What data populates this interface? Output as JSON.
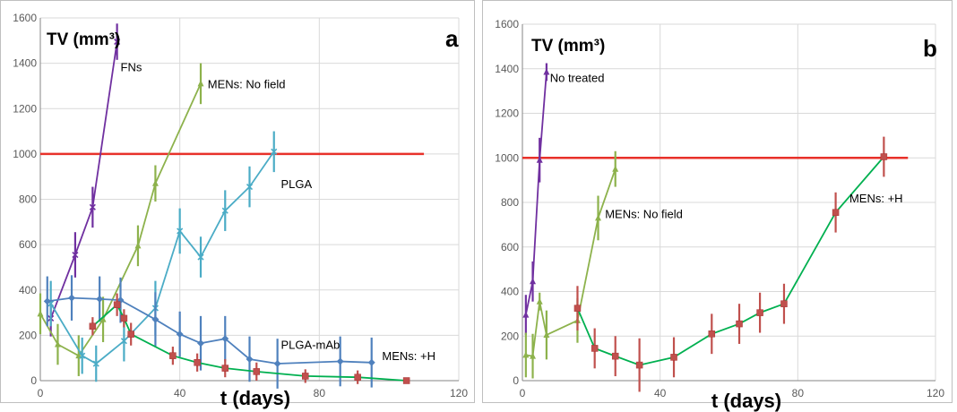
{
  "chart_data": [
    {
      "type": "line",
      "panel_label": "a",
      "ylabel": "TV (mm³)",
      "xlabel": "t (days)",
      "xlim": [
        0,
        120
      ],
      "ylim": [
        0,
        1600
      ],
      "xticks": [
        0,
        40,
        80,
        120
      ],
      "yticks": [
        0,
        200,
        400,
        600,
        800,
        1000,
        1200,
        1400,
        1600
      ],
      "grid": true,
      "reference_line": {
        "y": 1000,
        "x_end": 110,
        "color": "#e8312a"
      },
      "series": [
        {
          "name": "FNs",
          "color": "#7030a0",
          "marker": "x",
          "x": [
            3,
            10,
            15,
            22
          ],
          "y": [
            275,
            555,
            765,
            1495
          ],
          "err": [
            80,
            100,
            90,
            80
          ],
          "label_at": [
            23,
            1365
          ]
        },
        {
          "name": "MENs: No field",
          "color": "#8db24c",
          "marker": "triangle",
          "x": [
            0,
            5,
            11,
            18,
            28,
            33,
            46
          ],
          "y": [
            295,
            160,
            110,
            270,
            595,
            870,
            1310
          ],
          "err": [
            90,
            90,
            90,
            100,
            90,
            80,
            90
          ],
          "label_at": [
            48,
            1290
          ]
        },
        {
          "name": "PLGA",
          "color": "#4bacc6",
          "marker": "x",
          "x": [
            3,
            12,
            16,
            24,
            33,
            40,
            46,
            53,
            60,
            67
          ],
          "y": [
            340,
            110,
            75,
            175,
            320,
            660,
            545,
            750,
            855,
            1010
          ],
          "err": [
            100,
            80,
            80,
            90,
            120,
            100,
            90,
            90,
            90,
            90
          ],
          "label_at": [
            69,
            850
          ]
        },
        {
          "name": "PLGA-mAb",
          "color": "#4f81bd",
          "marker": "diamond",
          "x": [
            2,
            9,
            17,
            23,
            33,
            40,
            46,
            53,
            60,
            68,
            86,
            95
          ],
          "y": [
            350,
            365,
            360,
            355,
            270,
            205,
            165,
            185,
            95,
            75,
            85,
            80
          ],
          "err": [
            110,
            100,
            100,
            100,
            120,
            100,
            120,
            100,
            100,
            110,
            110,
            110
          ],
          "label_at": [
            69,
            140
          ]
        },
        {
          "name": "MENs: +H",
          "color": "#00b050",
          "marker": "square",
          "marker_color": "#c0504d",
          "x": [
            15,
            22,
            24,
            26,
            38,
            45,
            53,
            62,
            76,
            91,
            105
          ],
          "y": [
            240,
            335,
            275,
            205,
            110,
            80,
            55,
            40,
            20,
            15,
            0
          ],
          "err": [
            40,
            50,
            40,
            50,
            40,
            40,
            40,
            40,
            30,
            30,
            0
          ],
          "label_at": [
            98,
            90
          ]
        }
      ]
    },
    {
      "type": "line",
      "panel_label": "b",
      "ylabel": "TV (mm³)",
      "xlabel": "t (days)",
      "xlim": [
        0,
        120
      ],
      "ylim": [
        0,
        1600
      ],
      "xticks": [
        0,
        40,
        80,
        120
      ],
      "yticks": [
        0,
        200,
        400,
        600,
        800,
        1000,
        1200,
        1400,
        1600
      ],
      "grid": true,
      "reference_line": {
        "y": 1000,
        "x_end": 112,
        "color": "#e8312a"
      },
      "series": [
        {
          "name": "No treated",
          "color": "#7030a0",
          "marker": "triangle",
          "x": [
            1,
            3,
            5,
            7
          ],
          "y": [
            295,
            445,
            990,
            1385
          ],
          "err": [
            90,
            90,
            100,
            40
          ],
          "label_at": [
            8,
            1340
          ]
        },
        {
          "name": "MENs: No field",
          "color": "#8db24c",
          "marker": "triangle",
          "x": [
            1,
            3,
            5,
            7,
            16,
            22,
            27
          ],
          "y": [
            115,
            110,
            355,
            205,
            270,
            730,
            950
          ],
          "err": [
            100,
            100,
            40,
            110,
            100,
            100,
            80
          ],
          "label_at": [
            24,
            730
          ]
        },
        {
          "name": "MENs: +H",
          "color": "#00b050",
          "marker": "square",
          "marker_color": "#c0504d",
          "x": [
            16,
            21,
            27,
            34,
            44,
            55,
            63,
            69,
            76,
            91,
            105
          ],
          "y": [
            325,
            145,
            110,
            70,
            105,
            210,
            255,
            305,
            345,
            755,
            1005
          ],
          "err": [
            100,
            90,
            90,
            120,
            90,
            90,
            90,
            90,
            90,
            90,
            90
          ],
          "label_at": [
            95,
            800
          ]
        }
      ]
    }
  ]
}
